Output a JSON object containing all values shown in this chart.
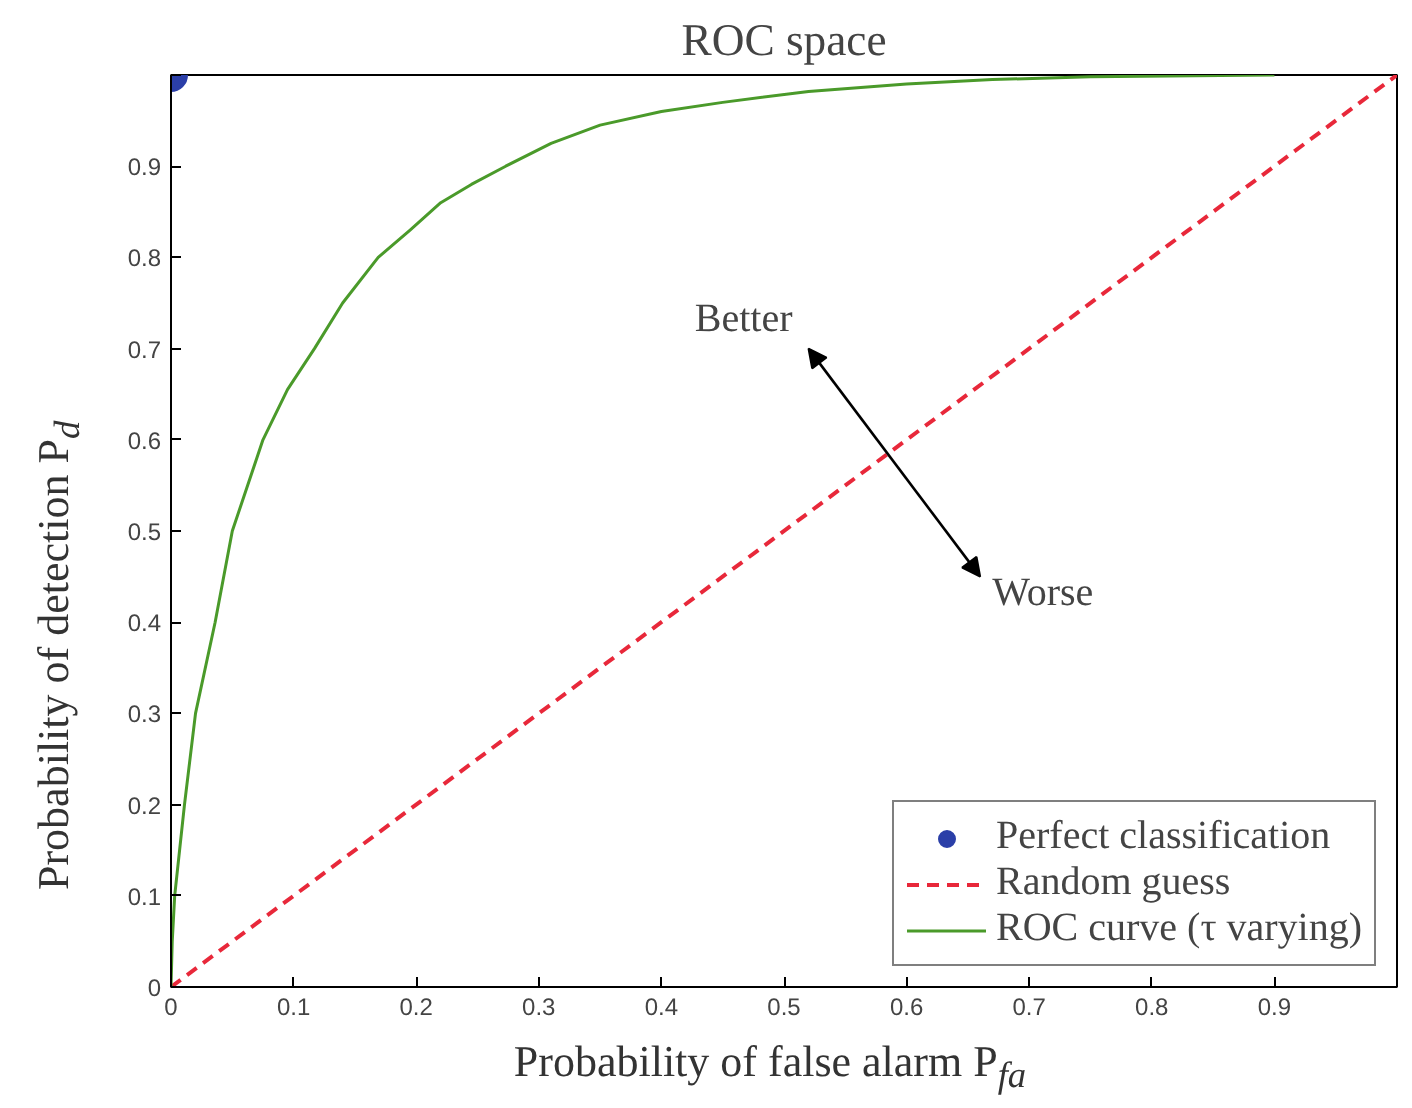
{
  "chart_data": {
    "type": "line",
    "title": "ROC space",
    "xlabel": "Probability of false alarm P$_{fa}$",
    "ylabel": "Probability of detection P$_{d}$",
    "xlim": [
      0,
      1
    ],
    "ylim": [
      0,
      1
    ],
    "xticks": [
      0,
      0.1,
      0.2,
      0.3,
      0.4,
      0.5,
      0.6,
      0.7,
      0.8,
      0.9,
      {
        "value": 1,
        "label": null
      }
    ],
    "yticks": [
      0,
      0.1,
      0.2,
      0.3,
      0.4,
      0.5,
      0.6,
      0.7,
      0.8,
      0.9,
      {
        "value": 1,
        "label": null
      }
    ],
    "series": [
      {
        "name": "Perfect classification",
        "type": "scatter",
        "marker": "circle",
        "color": "#2b3fa8",
        "x": [
          0
        ],
        "values": [
          1
        ]
      },
      {
        "name": "Random guess",
        "line_style": "dashed",
        "color": "#e8283a",
        "x": [
          0,
          1
        ],
        "values": [
          0,
          1
        ]
      },
      {
        "name": "ROC curve (τ varying)",
        "line_style": "solid",
        "color": "#4a9a2a",
        "x": [
          0,
          0.001,
          0.003,
          0.011,
          0.02,
          0.036,
          0.05,
          0.075,
          0.095,
          0.117,
          0.14,
          0.169,
          0.195,
          0.22,
          0.245,
          0.273,
          0.31,
          0.35,
          0.4,
          0.45,
          0.52,
          0.6,
          0.67,
          0.75,
          0.9
        ],
        "values": [
          0,
          0.05,
          0.1,
          0.2,
          0.3,
          0.4,
          0.5,
          0.6,
          0.655,
          0.7,
          0.75,
          0.8,
          0.83,
          0.86,
          0.88,
          0.9,
          0.925,
          0.945,
          0.96,
          0.97,
          0.982,
          0.99,
          0.995,
          0.998,
          1
        ]
      }
    ],
    "annotations": [
      "Better",
      "Worse"
    ],
    "grid": false,
    "legend": "bottom right"
  }
}
